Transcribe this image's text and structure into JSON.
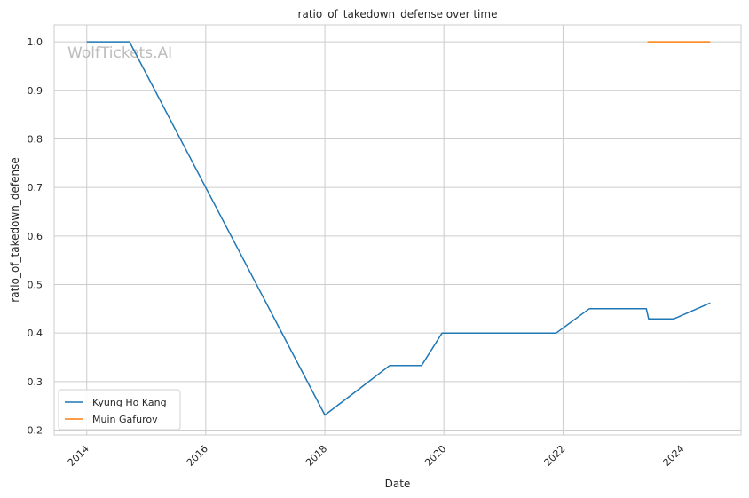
{
  "chart_data": {
    "type": "line",
    "title": "ratio_of_takedown_defense over time",
    "xlabel": "Date",
    "ylabel": "ratio_of_takedown_defense",
    "watermark": "WolfTickets.AI",
    "x_tick_labels": [
      "2014",
      "2016",
      "2018",
      "2020",
      "2022",
      "2024"
    ],
    "y_tick_labels": [
      "0.2",
      "0.3",
      "0.4",
      "0.5",
      "0.6",
      "0.7",
      "0.8",
      "0.9",
      "1.0"
    ],
    "xlim": [
      "2013-06-15",
      "2024-12-28"
    ],
    "ylim": [
      0.19,
      1.035
    ],
    "grid": true,
    "legend_position": "lower-left",
    "series": [
      {
        "name": "Kyung Ho Kang",
        "color": "#1f77b4",
        "points": [
          {
            "x": "2014-01-01",
            "y": 1.0
          },
          {
            "x": "2014-09-20",
            "y": 1.0
          },
          {
            "x": "2018-01-01",
            "y": 0.231
          },
          {
            "x": "2018-08-04",
            "y": 0.286
          },
          {
            "x": "2019-02-02",
            "y": 0.333
          },
          {
            "x": "2019-08-17",
            "y": 0.333
          },
          {
            "x": "2019-12-21",
            "y": 0.4
          },
          {
            "x": "2021-11-20",
            "y": 0.4
          },
          {
            "x": "2022-06-11",
            "y": 0.45
          },
          {
            "x": "2023-05-27",
            "y": 0.45
          },
          {
            "x": "2023-06-10",
            "y": 0.429
          },
          {
            "x": "2023-11-11",
            "y": 0.429
          },
          {
            "x": "2024-06-22",
            "y": 0.462
          }
        ]
      },
      {
        "name": "Muin Gafurov",
        "color": "#ff7f0e",
        "points": [
          {
            "x": "2023-06-03",
            "y": 1.0
          },
          {
            "x": "2024-06-22",
            "y": 1.0
          }
        ]
      }
    ]
  }
}
